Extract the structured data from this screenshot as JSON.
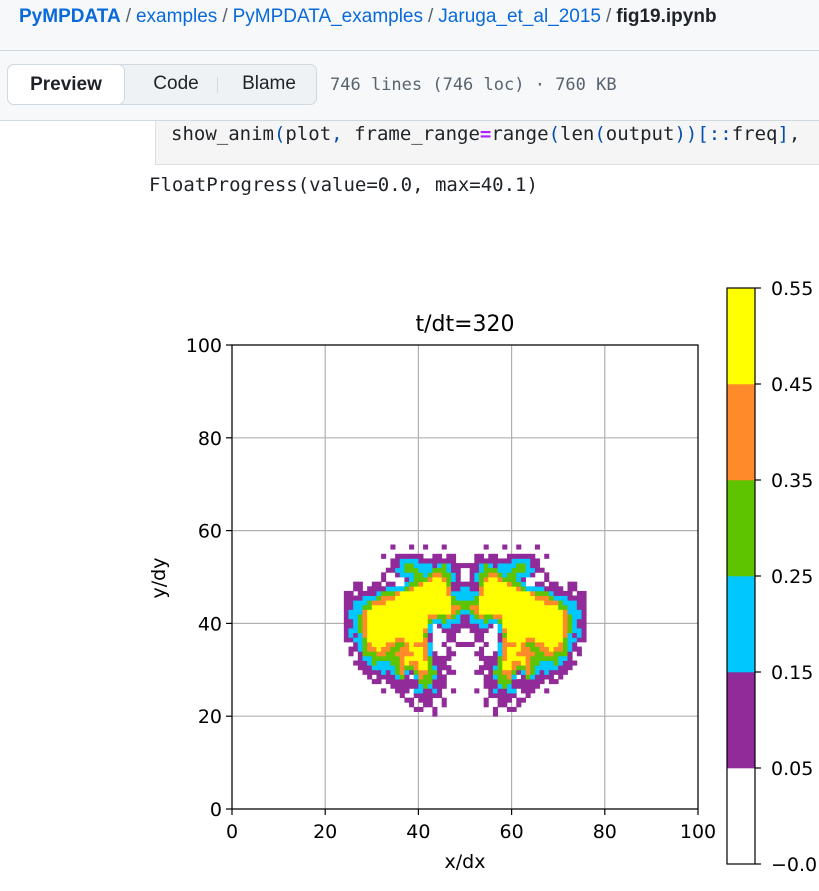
{
  "breadcrumb": {
    "repo": "PyMPDATA",
    "path": [
      "examples",
      "PyMPDATA_examples",
      "Jaruga_et_al_2015"
    ],
    "file": "fig19.ipynb"
  },
  "toolbar": {
    "tabs": [
      {
        "label": "Preview",
        "active": true
      },
      {
        "label": "Code",
        "active": false
      },
      {
        "label": "Blame",
        "active": false
      }
    ],
    "meta": "746 lines (746 loc) · 760 KB"
  },
  "code": {
    "tokens": [
      "show_anim",
      "(",
      "plot",
      ", ",
      "frame_range",
      "=",
      "range",
      "(",
      "len",
      "(",
      "output",
      ")",
      ")",
      "[",
      "::",
      "freq",
      "]",
      ","
    ]
  },
  "output": {
    "text": "FloatProgress(value=0.0, max=40.1)"
  },
  "chart_data": {
    "type": "heatmap",
    "title": "t/dt=320",
    "xlabel": "x/dx",
    "ylabel": "y/dy",
    "xlim": [
      0,
      100
    ],
    "ylim": [
      0,
      100
    ],
    "xticks": [
      0,
      20,
      40,
      60,
      80,
      100
    ],
    "yticks": [
      0,
      20,
      40,
      60,
      80,
      100
    ],
    "grid": true,
    "colorbar": {
      "levels": [
        -0.05,
        0.05,
        0.15,
        0.25,
        0.35,
        0.45,
        0.55
      ],
      "tick_labels": [
        "−0.0",
        "0.05",
        "0.15",
        "0.25",
        "0.35",
        "0.45",
        "0.55"
      ],
      "colors": [
        "#ffffff",
        "#922b9a",
        "#00c8ff",
        "#5ec400",
        "#ff8a2a",
        "#ffff00"
      ]
    }
  }
}
